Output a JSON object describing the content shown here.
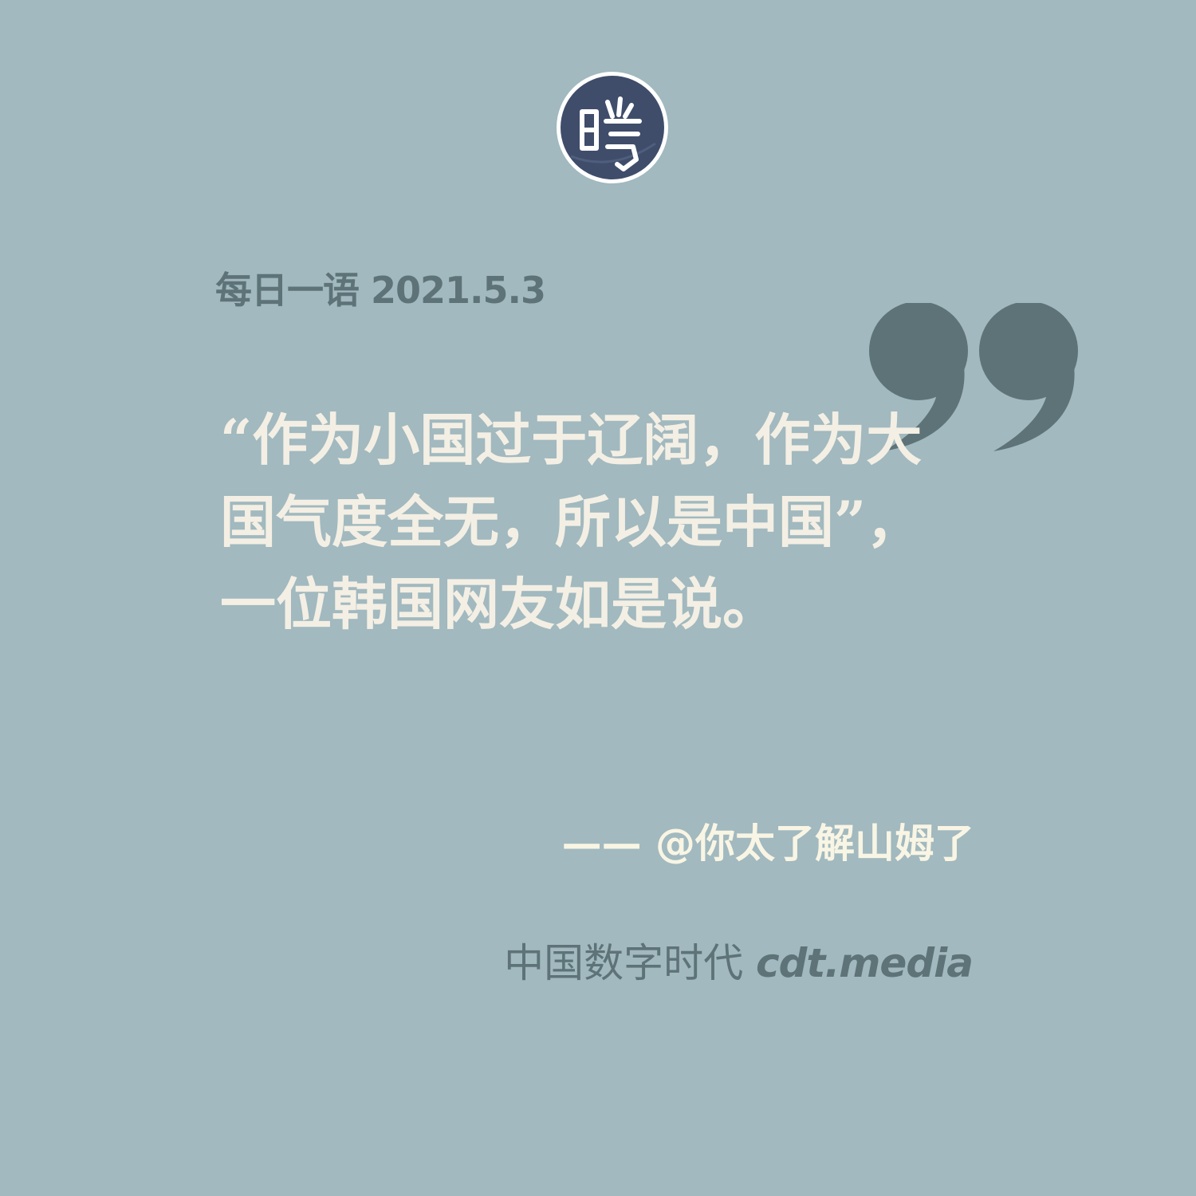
{
  "logo": {
    "glyph": "曉",
    "icon": "cdt-seal-logo"
  },
  "header": {
    "date_line": "每日一语 2021.5.3"
  },
  "quote": {
    "icon": "closing-quote-mark",
    "lines": [
      "“作为小国过于辽阔，作为大",
      "国气度全无，所以是中国”，",
      "一位韩国网友如是说。"
    ]
  },
  "attribution": {
    "text": "—— @你太了解山姆了"
  },
  "footer": {
    "brand_cn": "中国数字时代",
    "brand_en": "cdt.media"
  },
  "colors": {
    "background": "#a1b9bf",
    "muted_text": "#5e7378",
    "quote_text": "#f4efe4",
    "logo_fill": "#3f4d6b"
  }
}
